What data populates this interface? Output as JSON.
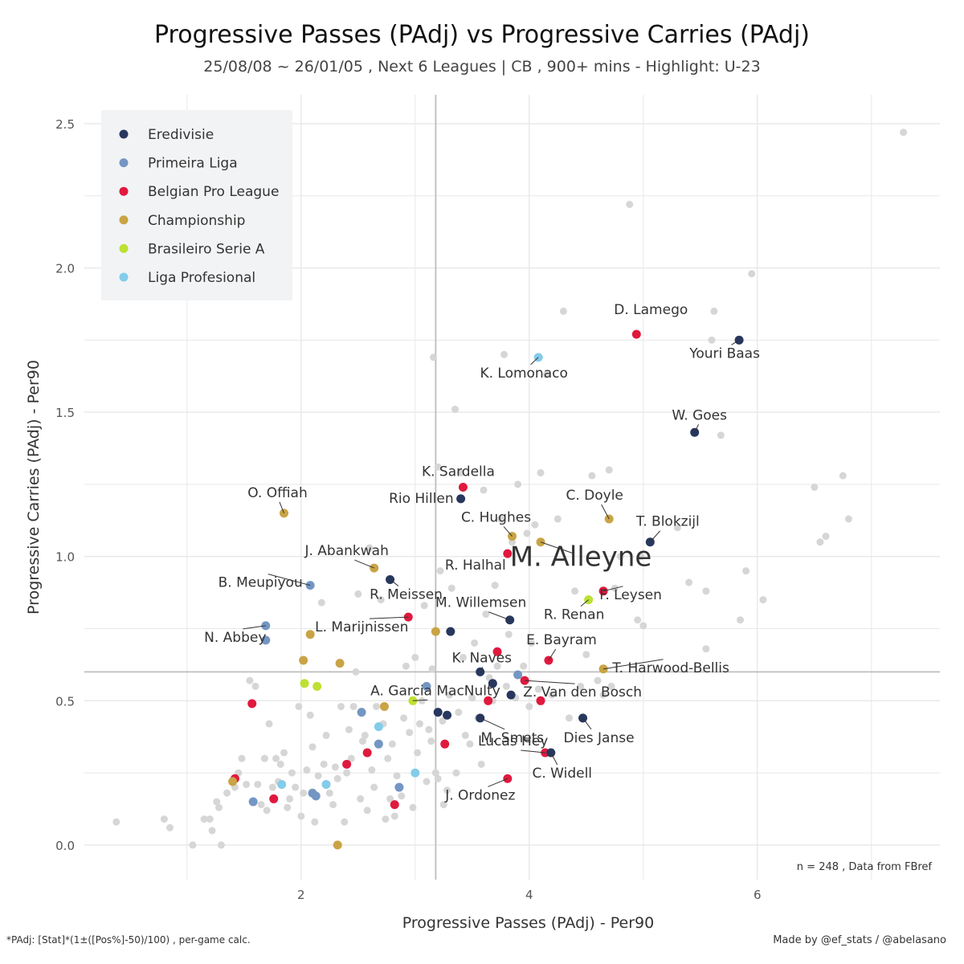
{
  "page": {
    "title": "Progressive Passes (PAdj)  vs  Progressive Carries (PAdj)",
    "subtitle": "25/08/08 ~ 26/01/05 , Next 6 Leagues | CB , 900+ mins - Highlight: U-23",
    "footnote_left": "*PAdj: [Stat]*(1±([Pos%]-50)/100) , per-game calc.",
    "footnote_right": "Made by @ef_stats / @abelasano",
    "note": "n =  248  , Data from  FBref"
  },
  "colors": {
    "background_dots": "#d6d6d6",
    "reference_line": "#bdbdbd",
    "grid": "#e8e8e8",
    "legend_bg": "#f2f3f5"
  },
  "chart_data": {
    "type": "scatter",
    "title": "Progressive Passes (PAdj)  vs  Progressive Carries (PAdj)",
    "xlabel": "Progressive Passes (PAdj)  -  Per90",
    "ylabel": "Progressive Carries (PAdj)  -  Per90",
    "xlim": [
      0.1,
      7.6
    ],
    "ylim": [
      -0.12,
      2.6
    ],
    "x_ticks": [
      2,
      4,
      6
    ],
    "y_ticks": [
      0.0,
      0.5,
      1.0,
      1.5,
      2.0,
      2.5
    ],
    "x_tick_labels": [
      "2",
      "4",
      "6"
    ],
    "y_tick_labels": [
      "0.0",
      "0.5",
      "1.0",
      "1.5",
      "2.0",
      "2.5"
    ],
    "grid": true,
    "reference_lines": {
      "x": 3.18,
      "y": 0.6
    },
    "legend_position": "top-left",
    "legend": [
      {
        "name": "Eredivisie",
        "color": "#27375e"
      },
      {
        "name": "Primeira Liga",
        "color": "#7496c3"
      },
      {
        "name": "Belgian Pro League",
        "color": "#e0193e"
      },
      {
        "name": "Championship",
        "color": "#c9a445"
      },
      {
        "name": "Brasileiro Serie A",
        "color": "#bde033"
      },
      {
        "name": "Liga Profesional",
        "color": "#83ccea"
      }
    ],
    "background_points": [
      [
        0.38,
        0.08
      ],
      [
        0.8,
        0.09
      ],
      [
        0.85,
        0.06
      ],
      [
        1.05,
        0.0
      ],
      [
        1.15,
        0.09
      ],
      [
        1.2,
        0.09
      ],
      [
        1.22,
        0.05
      ],
      [
        1.26,
        0.15
      ],
      [
        1.28,
        0.13
      ],
      [
        1.3,
        0.0
      ],
      [
        1.35,
        0.18
      ],
      [
        1.42,
        0.2
      ],
      [
        1.48,
        0.3
      ],
      [
        1.52,
        0.21
      ],
      [
        1.45,
        0.25
      ],
      [
        1.55,
        0.57
      ],
      [
        1.6,
        0.55
      ],
      [
        1.62,
        0.21
      ],
      [
        1.65,
        0.14
      ],
      [
        1.68,
        0.3
      ],
      [
        1.7,
        0.12
      ],
      [
        1.72,
        0.42
      ],
      [
        1.75,
        0.2
      ],
      [
        1.78,
        0.3
      ],
      [
        1.8,
        0.22
      ],
      [
        1.82,
        0.28
      ],
      [
        1.85,
        0.32
      ],
      [
        1.88,
        0.13
      ],
      [
        1.9,
        0.16
      ],
      [
        1.92,
        0.25
      ],
      [
        1.95,
        0.2
      ],
      [
        1.98,
        0.48
      ],
      [
        2.0,
        0.1
      ],
      [
        2.02,
        0.18
      ],
      [
        2.05,
        0.26
      ],
      [
        2.08,
        0.45
      ],
      [
        2.1,
        0.34
      ],
      [
        2.12,
        0.08
      ],
      [
        2.15,
        0.24
      ],
      [
        2.18,
        0.84
      ],
      [
        2.2,
        0.28
      ],
      [
        2.22,
        0.38
      ],
      [
        2.25,
        0.18
      ],
      [
        2.28,
        0.14
      ],
      [
        2.3,
        0.27
      ],
      [
        2.32,
        0.23
      ],
      [
        2.35,
        0.48
      ],
      [
        2.38,
        0.08
      ],
      [
        2.4,
        0.25
      ],
      [
        2.42,
        0.4
      ],
      [
        2.44,
        0.3
      ],
      [
        2.46,
        0.48
      ],
      [
        2.48,
        0.6
      ],
      [
        2.5,
        0.87
      ],
      [
        2.52,
        0.16
      ],
      [
        2.54,
        0.36
      ],
      [
        2.56,
        0.38
      ],
      [
        2.58,
        0.12
      ],
      [
        2.6,
        1.03
      ],
      [
        2.62,
        0.26
      ],
      [
        2.64,
        0.2
      ],
      [
        2.66,
        0.48
      ],
      [
        2.7,
        0.85
      ],
      [
        2.72,
        0.42
      ],
      [
        2.74,
        0.09
      ],
      [
        2.76,
        0.3
      ],
      [
        2.78,
        0.16
      ],
      [
        2.8,
        0.35
      ],
      [
        2.82,
        0.1
      ],
      [
        2.84,
        0.24
      ],
      [
        2.88,
        0.17
      ],
      [
        2.9,
        0.44
      ],
      [
        2.92,
        0.62
      ],
      [
        2.95,
        0.39
      ],
      [
        2.98,
        0.13
      ],
      [
        3.0,
        0.65
      ],
      [
        3.02,
        0.32
      ],
      [
        3.04,
        0.42
      ],
      [
        3.06,
        0.5
      ],
      [
        3.08,
        0.83
      ],
      [
        3.1,
        0.22
      ],
      [
        3.12,
        0.4
      ],
      [
        3.14,
        0.36
      ],
      [
        3.15,
        0.61
      ],
      [
        3.18,
        0.25
      ],
      [
        3.2,
        0.23
      ],
      [
        3.2,
        1.31
      ],
      [
        3.16,
        1.69
      ],
      [
        3.22,
        0.95
      ],
      [
        3.24,
        0.43
      ],
      [
        3.25,
        0.14
      ],
      [
        3.28,
        0.19
      ],
      [
        3.3,
        0.52
      ],
      [
        3.32,
        0.89
      ],
      [
        3.35,
        1.51
      ],
      [
        3.36,
        0.25
      ],
      [
        3.38,
        0.46
      ],
      [
        3.4,
        1.29
      ],
      [
        3.42,
        0.65
      ],
      [
        3.44,
        0.38
      ],
      [
        3.48,
        0.35
      ],
      [
        3.5,
        0.51
      ],
      [
        3.52,
        0.7
      ],
      [
        3.55,
        0.44
      ],
      [
        3.58,
        0.28
      ],
      [
        3.6,
        1.23
      ],
      [
        3.62,
        0.8
      ],
      [
        3.65,
        0.58
      ],
      [
        3.68,
        0.5
      ],
      [
        3.7,
        0.9
      ],
      [
        3.72,
        0.62
      ],
      [
        3.75,
        1.13
      ],
      [
        3.78,
        1.7
      ],
      [
        3.8,
        0.55
      ],
      [
        3.82,
        0.73
      ],
      [
        3.85,
        1.05
      ],
      [
        3.88,
        0.51
      ],
      [
        3.9,
        1.25
      ],
      [
        3.95,
        0.62
      ],
      [
        3.98,
        1.08
      ],
      [
        4.0,
        0.48
      ],
      [
        4.02,
        0.7
      ],
      [
        4.05,
        1.11
      ],
      [
        4.08,
        0.54
      ],
      [
        4.1,
        1.29
      ],
      [
        4.15,
        1.63
      ],
      [
        4.2,
        0.52
      ],
      [
        4.25,
        1.13
      ],
      [
        4.3,
        1.85
      ],
      [
        4.35,
        0.44
      ],
      [
        4.4,
        0.88
      ],
      [
        4.45,
        0.55
      ],
      [
        4.5,
        0.66
      ],
      [
        4.55,
        1.28
      ],
      [
        4.6,
        0.57
      ],
      [
        4.65,
        0.52
      ],
      [
        4.72,
        0.55
      ],
      [
        4.75,
        0.89
      ],
      [
        4.8,
        1.0
      ],
      [
        4.88,
        2.22
      ],
      [
        4.95,
        0.78
      ],
      [
        4.98,
        1.0
      ],
      [
        5.0,
        0.76
      ],
      [
        5.3,
        1.1
      ],
      [
        5.4,
        0.91
      ],
      [
        5.55,
        0.68
      ],
      [
        5.55,
        0.88
      ],
      [
        5.6,
        1.75
      ],
      [
        5.62,
        1.85
      ],
      [
        5.68,
        1.42
      ],
      [
        5.85,
        0.78
      ],
      [
        5.9,
        0.95
      ],
      [
        5.95,
        1.98
      ],
      [
        6.05,
        0.85
      ],
      [
        6.5,
        1.24
      ],
      [
        6.55,
        1.05
      ],
      [
        6.6,
        1.07
      ],
      [
        6.75,
        1.28
      ],
      [
        6.8,
        1.13
      ],
      [
        7.28,
        2.47
      ],
      [
        4.7,
        1.3
      ]
    ],
    "highlight_points": [
      {
        "label": "D. Lamego",
        "league": "Belgian Pro League",
        "x": 4.94,
        "y": 1.77
      },
      {
        "label": "Youri Baas",
        "league": "Eredivisie",
        "x": 5.84,
        "y": 1.75
      },
      {
        "label": "K. Lomonaco",
        "league": "Liga Profesional",
        "x": 4.08,
        "y": 1.69
      },
      {
        "label": "W. Goes",
        "league": "Eredivisie",
        "x": 5.45,
        "y": 1.43
      },
      {
        "label": "K. Sardella",
        "league": "Belgian Pro League",
        "x": 3.42,
        "y": 1.24
      },
      {
        "label": "Rio Hillen",
        "league": "Eredivisie",
        "x": 3.4,
        "y": 1.2
      },
      {
        "label": "O. Offiah",
        "league": "Championship",
        "x": 1.85,
        "y": 1.15
      },
      {
        "label": "C. Doyle",
        "league": "Championship",
        "x": 4.7,
        "y": 1.13
      },
      {
        "label": "C. Hughes",
        "league": "Championship",
        "x": 3.85,
        "y": 1.07
      },
      {
        "label": "T. Blokzijl",
        "league": "Eredivisie",
        "x": 5.06,
        "y": 1.05
      },
      {
        "label": "M. Alleyne",
        "league": "Championship",
        "x": 4.1,
        "y": 1.05
      },
      {
        "label": "R. Halhal",
        "league": "Belgian Pro League",
        "x": 3.81,
        "y": 1.01
      },
      {
        "label": "J. Abankwah",
        "league": "Championship",
        "x": 2.64,
        "y": 0.96
      },
      {
        "label": "R. Meissen",
        "league": "Eredivisie",
        "x": 2.78,
        "y": 0.92
      },
      {
        "label": "B. Meupiyou",
        "league": "Primeira Liga",
        "x": 2.08,
        "y": 0.9
      },
      {
        "label": "R. Renan",
        "league": "Brasileiro Serie A",
        "x": 4.52,
        "y": 0.85
      },
      {
        "label": "F. Leysen",
        "league": "Belgian Pro League",
        "x": 4.65,
        "y": 0.88
      },
      {
        "label": "L. Marijnissen",
        "league": "Belgian Pro League",
        "x": 2.94,
        "y": 0.79
      },
      {
        "label": "M. Willemsen",
        "league": "Eredivisie",
        "x": 3.83,
        "y": 0.78
      },
      {
        "label": "N. Abbey",
        "league": "Primeira Liga",
        "x": 1.69,
        "y": 0.76
      },
      {
        "label": "",
        "league": "Primeira Liga",
        "x": 1.69,
        "y": 0.71
      },
      {
        "label": "",
        "league": "Championship",
        "x": 2.08,
        "y": 0.73
      },
      {
        "label": "",
        "league": "Championship",
        "x": 3.18,
        "y": 0.74
      },
      {
        "label": "",
        "league": "Eredivisie",
        "x": 3.31,
        "y": 0.74
      },
      {
        "label": "",
        "league": "Belgian Pro League",
        "x": 3.72,
        "y": 0.67
      },
      {
        "label": "E. Bayram",
        "league": "Belgian Pro League",
        "x": 4.17,
        "y": 0.64
      },
      {
        "label": "",
        "league": "Championship",
        "x": 2.02,
        "y": 0.64
      },
      {
        "label": "",
        "league": "Championship",
        "x": 2.34,
        "y": 0.63
      },
      {
        "label": "T. Harwood-Bellis",
        "league": "Championship",
        "x": 4.65,
        "y": 0.61
      },
      {
        "label": "K. Naves",
        "league": "Eredivisie",
        "x": 3.57,
        "y": 0.6
      },
      {
        "label": "",
        "league": "Primeira Liga",
        "x": 3.9,
        "y": 0.59
      },
      {
        "label": "Z. Van den Bosch",
        "league": "Belgian Pro League",
        "x": 3.96,
        "y": 0.57
      },
      {
        "label": "",
        "league": "Eredivisie",
        "x": 3.68,
        "y": 0.56
      },
      {
        "label": "",
        "league": "Primeira Liga",
        "x": 3.1,
        "y": 0.55
      },
      {
        "label": "",
        "league": "Brasileiro Serie A",
        "x": 2.03,
        "y": 0.56
      },
      {
        "label": "",
        "league": "Brasileiro Serie A",
        "x": 2.14,
        "y": 0.55
      },
      {
        "label": "",
        "league": "Eredivisie",
        "x": 3.84,
        "y": 0.52
      },
      {
        "label": "",
        "league": "Belgian Pro League",
        "x": 3.64,
        "y": 0.5
      },
      {
        "label": "",
        "league": "Belgian Pro League",
        "x": 4.1,
        "y": 0.5
      },
      {
        "label": "A. Garcia MacNulty",
        "league": "Brasileiro Serie A",
        "x": 2.98,
        "y": 0.5
      },
      {
        "label": "",
        "league": "Belgian Pro League",
        "x": 1.57,
        "y": 0.49
      },
      {
        "label": "",
        "league": "Championship",
        "x": 2.73,
        "y": 0.48
      },
      {
        "label": "",
        "league": "Primeira Liga",
        "x": 2.53,
        "y": 0.46
      },
      {
        "label": "",
        "league": "Eredivisie",
        "x": 3.2,
        "y": 0.46
      },
      {
        "label": "",
        "league": "Eredivisie",
        "x": 3.28,
        "y": 0.45
      },
      {
        "label": "M. Smets",
        "league": "Eredivisie",
        "x": 3.57,
        "y": 0.44
      },
      {
        "label": "Dies Janse",
        "league": "Eredivisie",
        "x": 4.47,
        "y": 0.44
      },
      {
        "label": "",
        "league": "Liga Profesional",
        "x": 2.68,
        "y": 0.41
      },
      {
        "label": "",
        "league": "Primeira Liga",
        "x": 2.68,
        "y": 0.35
      },
      {
        "label": "",
        "league": "Belgian Pro League",
        "x": 3.26,
        "y": 0.35
      },
      {
        "label": "Lucas Hey",
        "league": "Belgian Pro League",
        "x": 4.14,
        "y": 0.32
      },
      {
        "label": "C. Widell",
        "league": "Eredivisie",
        "x": 4.19,
        "y": 0.32
      },
      {
        "label": "",
        "league": "Belgian Pro League",
        "x": 2.58,
        "y": 0.32
      },
      {
        "label": "",
        "league": "Belgian Pro League",
        "x": 2.4,
        "y": 0.28
      },
      {
        "label": "",
        "league": "Liga Profesional",
        "x": 3.0,
        "y": 0.25
      },
      {
        "label": "J. Ordonez",
        "league": "Belgian Pro League",
        "x": 3.81,
        "y": 0.23
      },
      {
        "label": "",
        "league": "Belgian Pro League",
        "x": 1.42,
        "y": 0.23
      },
      {
        "label": "",
        "league": "Championship",
        "x": 1.4,
        "y": 0.22
      },
      {
        "label": "",
        "league": "Liga Profesional",
        "x": 1.83,
        "y": 0.21
      },
      {
        "label": "",
        "league": "Liga Profesional",
        "x": 2.22,
        "y": 0.21
      },
      {
        "label": "",
        "league": "Primeira Liga",
        "x": 2.86,
        "y": 0.2
      },
      {
        "label": "",
        "league": "Primeira Liga",
        "x": 2.1,
        "y": 0.18
      },
      {
        "label": "",
        "league": "Primeira Liga",
        "x": 2.13,
        "y": 0.17
      },
      {
        "label": "",
        "league": "Belgian Pro League",
        "x": 1.76,
        "y": 0.16
      },
      {
        "label": "",
        "league": "Primeira Liga",
        "x": 1.58,
        "y": 0.15
      },
      {
        "label": "",
        "league": "Belgian Pro League",
        "x": 2.82,
        "y": 0.14
      },
      {
        "label": "",
        "league": "Championship",
        "x": 2.32,
        "y": 0.0
      }
    ]
  }
}
